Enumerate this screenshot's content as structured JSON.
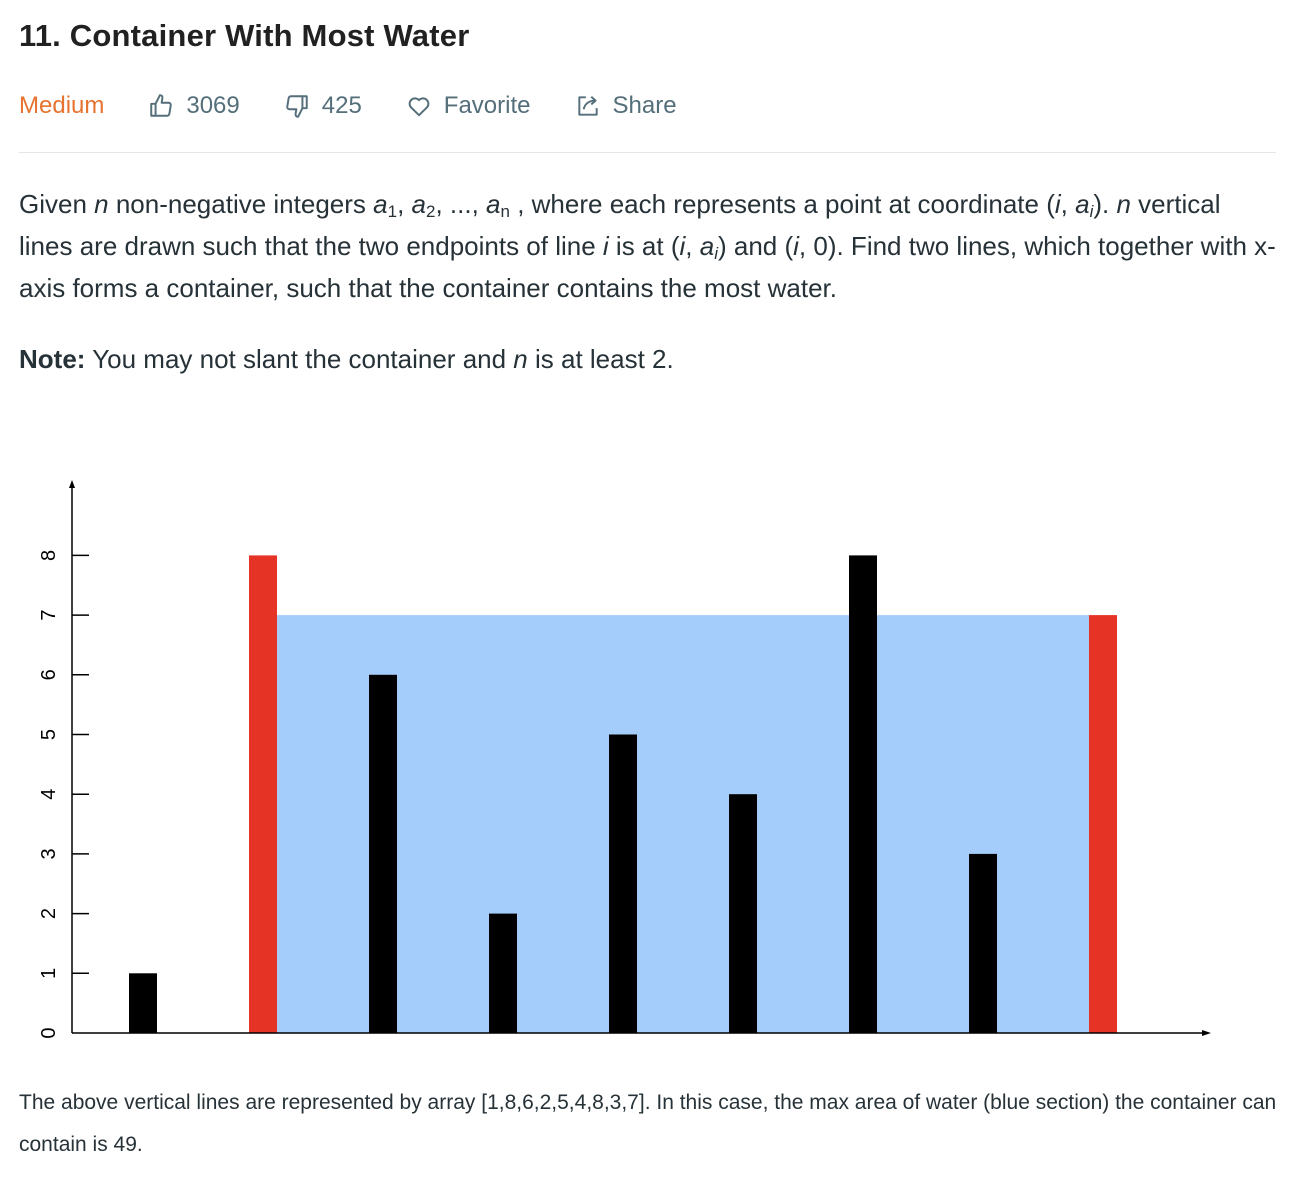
{
  "problem": {
    "title": "11. Container With Most Water",
    "difficulty": "Medium",
    "likes": "3069",
    "dislikes": "425",
    "favorite_label": "Favorite",
    "share_label": "Share"
  },
  "description": {
    "given": "Given ",
    "n": "n",
    "integers_text": " non-negative integers ",
    "a": "a",
    "sub_1": "1",
    "sep_1": ", ",
    "sub_2": "2",
    "ellipsis": ", ..., ",
    "sub_n": "n",
    "where_text": " , where each represents a point at coordinate (",
    "i": "i",
    "comma": ", ",
    "sub_i": "i",
    "close_paren_dot": "). ",
    "vertical_text": " vertical lines are drawn such that the two endpoints of line ",
    "is_at": " is at (",
    "and_text": ") and (",
    "zero_text": ", 0). Find two lines, which together with x-axis forms a container, such that the container contains the most water."
  },
  "note": {
    "label": "Note:",
    "text_1": " You may not slant the container and ",
    "n": "n",
    "text_2": " is at least 2."
  },
  "caption": "The above vertical lines are represented by array [1,8,6,2,5,4,8,3,7]. In this case, the max area of water (blue section) the container can contain is 49.",
  "colors": {
    "difficulty": "#e6732e",
    "bar": "#000000",
    "highlight_bar": "#e53325",
    "water": "#a4cdfb"
  },
  "chart_data": {
    "type": "bar",
    "values": [
      1,
      8,
      6,
      2,
      5,
      4,
      8,
      3,
      7
    ],
    "highlighted_indices": [
      1,
      8
    ],
    "water_level": 7,
    "water_span": [
      1,
      8
    ],
    "y_ticks": [
      "0",
      "1",
      "2",
      "3",
      "4",
      "5",
      "6",
      "7",
      "8"
    ],
    "ylim": [
      0,
      9
    ]
  }
}
